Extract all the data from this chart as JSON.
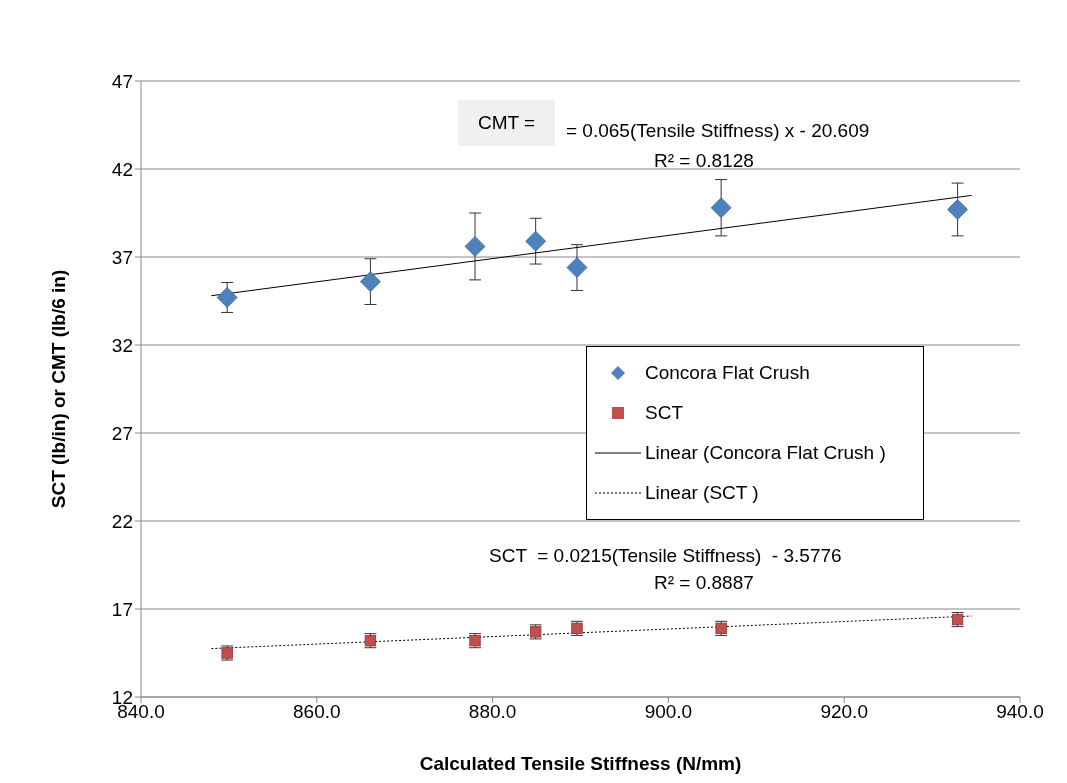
{
  "chart_data": {
    "type": "scatter",
    "xlabel": "Calculated Tensile Stiffness (N/mm)",
    "ylabel": "SCT (lb/in) or CMT (lb/6 in)",
    "xlim": [
      840,
      940
    ],
    "xticks": [
      {
        "value": 840,
        "label": "840.0"
      },
      {
        "value": 860,
        "label": "860.0"
      },
      {
        "value": 880,
        "label": "880.0"
      },
      {
        "value": 900,
        "label": "900.0"
      },
      {
        "value": 920,
        "label": "920.0"
      },
      {
        "value": 940,
        "label": "940.0"
      }
    ],
    "ylim": [
      12,
      47
    ],
    "yticks": [
      12,
      17,
      22,
      27,
      32,
      37,
      42,
      47
    ],
    "grid": "y",
    "legend": "right",
    "annotations": [
      "CMT =",
      "= 0.065(Tensile Stiffness) x - 20.609",
      "R² = 0.8128",
      "SCT  = 0.0215(Tensile Stiffness)  - 3.5776",
      "R² = 0.8887"
    ],
    "series": [
      {
        "name": "Concora Flat Crush",
        "marker": "diamond",
        "color": "#4f81bd",
        "x": [
          849.8,
          866.1,
          878.0,
          884.9,
          889.6,
          906.0,
          932.9
        ],
        "values": [
          34.7,
          35.6,
          37.6,
          37.9,
          36.4,
          39.8,
          39.7
        ],
        "errors": [
          0.85,
          1.3,
          1.9,
          1.3,
          1.3,
          1.6,
          1.5
        ]
      },
      {
        "name": "SCT",
        "marker": "square",
        "color": "#c0504d",
        "x": [
          849.8,
          866.1,
          878.0,
          884.9,
          889.6,
          906.0,
          932.9
        ],
        "values": [
          14.5,
          15.2,
          15.2,
          15.7,
          15.9,
          15.9,
          16.4
        ],
        "errors": [
          0.4,
          0.4,
          0.4,
          0.4,
          0.4,
          0.4,
          0.4
        ]
      },
      {
        "name": "Linear (Concora Flat Crush )",
        "type": "line",
        "marker": "none",
        "line_style": "solid",
        "color": "#000000",
        "x": [
          848,
          934.5
        ],
        "values": [
          34.8,
          40.5
        ]
      },
      {
        "name": "Linear (SCT )",
        "type": "line",
        "marker": "none",
        "line_style": "dotted",
        "color": "#000000",
        "x": [
          848,
          934.5
        ],
        "values": [
          14.75,
          16.6
        ]
      }
    ]
  }
}
